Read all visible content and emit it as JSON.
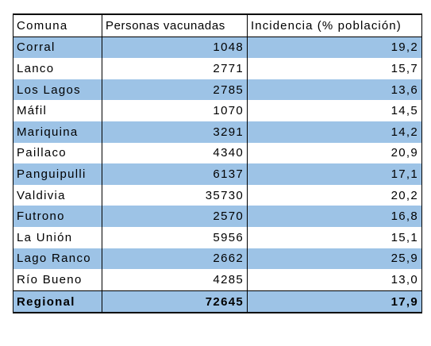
{
  "colors": {
    "row_highlight": "#9dc3e6",
    "row_plain": "#ffffff",
    "border": "#000000"
  },
  "table": {
    "headers": [
      "Comuna",
      "Personas vacunadas",
      "Incidencia (% población)"
    ],
    "rows": [
      {
        "comuna": "Corral",
        "vacunadas": "1048",
        "incidencia": "19,2"
      },
      {
        "comuna": "Lanco",
        "vacunadas": "2771",
        "incidencia": "15,7"
      },
      {
        "comuna": "Los Lagos",
        "vacunadas": "2785",
        "incidencia": "13,6"
      },
      {
        "comuna": "Máfil",
        "vacunadas": "1070",
        "incidencia": "14,5"
      },
      {
        "comuna": "Mariquina",
        "vacunadas": "3291",
        "incidencia": "14,2"
      },
      {
        "comuna": "Paillaco",
        "vacunadas": "4340",
        "incidencia": "20,9"
      },
      {
        "comuna": "Panguipulli",
        "vacunadas": "6137",
        "incidencia": "17,1"
      },
      {
        "comuna": "Valdivia",
        "vacunadas": "35730",
        "incidencia": "20,2"
      },
      {
        "comuna": "Futrono",
        "vacunadas": "2570",
        "incidencia": "16,8"
      },
      {
        "comuna": "La Unión",
        "vacunadas": "5956",
        "incidencia": "15,1"
      },
      {
        "comuna": "Lago Ranco",
        "vacunadas": "2662",
        "incidencia": "25,9"
      },
      {
        "comuna": "Río Bueno",
        "vacunadas": "4285",
        "incidencia": "13,0"
      }
    ],
    "total": {
      "comuna": "Regional",
      "vacunadas": "72645",
      "incidencia": "17,9"
    }
  }
}
